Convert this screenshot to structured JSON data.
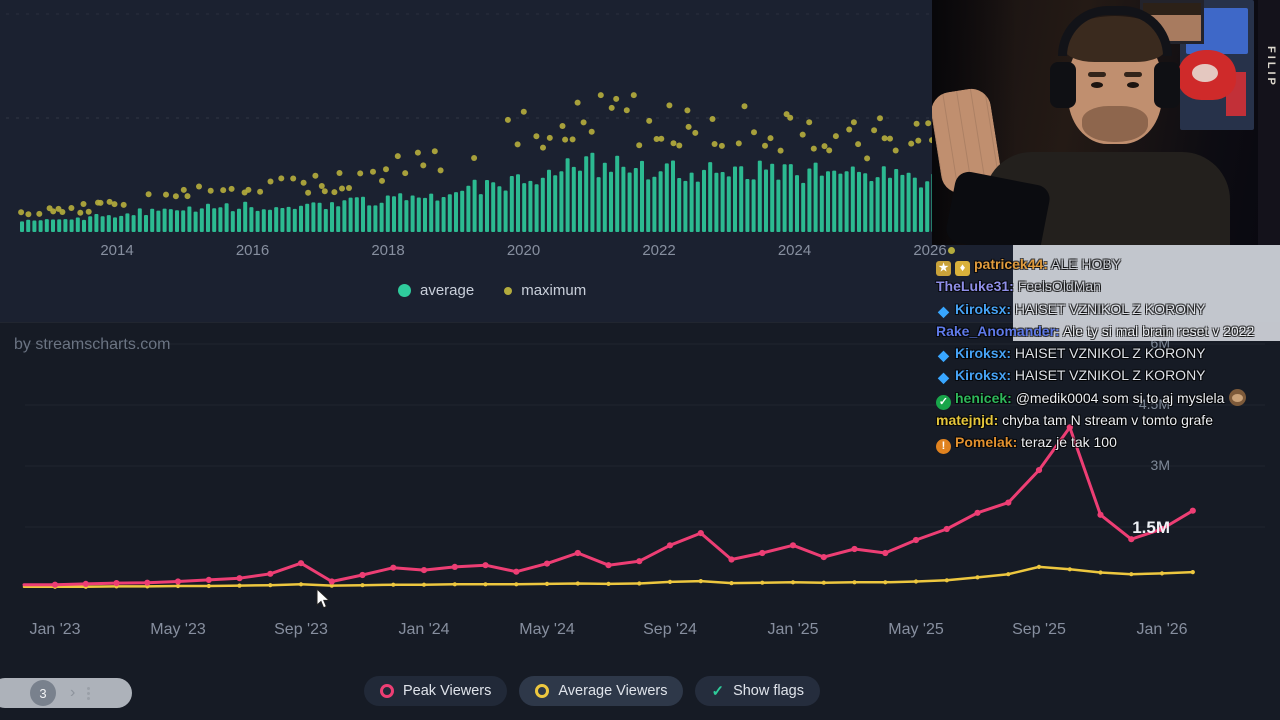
{
  "branding": {
    "label": "by streamscharts.com"
  },
  "chart_data": [
    {
      "type": "bar",
      "x_ticks": [
        "2014",
        "2016",
        "2018",
        "2020",
        "2022",
        "2024",
        "2026"
      ],
      "x_year_range": [
        2012.6,
        2026.1
      ],
      "y_axis_visible": false,
      "legend": [
        {
          "label": "average",
          "color": "#2fcb9c"
        },
        {
          "label": "maximum",
          "color": "#b3ab3d"
        }
      ],
      "anchor_years": [
        2013,
        2014,
        2015,
        2016,
        2017,
        2018,
        2019,
        2020,
        2021,
        2022,
        2023,
        2024,
        2025,
        2026
      ],
      "series": [
        {
          "name": "average",
          "render": "bars",
          "color": "#2fcb9c",
          "values_rel": [
            8,
            12,
            16,
            17,
            18,
            21,
            27,
            37,
            45,
            42,
            40,
            40,
            37,
            37
          ]
        },
        {
          "name": "maximum",
          "render": "points",
          "color": "#b3ab3d",
          "values_rel": [
            13,
            20,
            27,
            28,
            32,
            41,
            50,
            70,
            77,
            73,
            70,
            67,
            63,
            60
          ]
        }
      ]
    },
    {
      "type": "line",
      "x_ticks": [
        "Jan '23",
        "May '23",
        "Sep '23",
        "Jan '24",
        "May '24",
        "Sep '24",
        "Jan '25",
        "May '25",
        "Sep '25",
        "Jan '26"
      ],
      "y_ticks": [
        {
          "label": "6M",
          "value_m": 6
        },
        {
          "label": "4.5M",
          "value_m": 4.5
        },
        {
          "label": "3M",
          "value_m": 3
        },
        {
          "label": "1.5M",
          "value_m": 1.5
        }
      ],
      "months": [
        "Jan '23",
        "Feb '23",
        "Mar '23",
        "Apr '23",
        "May '23",
        "Jun '23",
        "Jul '23",
        "Aug '23",
        "Sep '23",
        "Oct '23",
        "Nov '23",
        "Dec '23",
        "Jan '24",
        "Feb '24",
        "Mar '24",
        "Apr '24",
        "May '24",
        "Jun '24",
        "Jul '24",
        "Aug '24",
        "Sep '24",
        "Oct '24",
        "Nov '24",
        "Dec '24",
        "Jan '25",
        "Feb '25",
        "Mar '25",
        "Apr '25",
        "May '25",
        "Jun '25",
        "Jul '25",
        "Aug '25",
        "Sep '25",
        "Oct '25",
        "Nov '25",
        "Dec '25",
        "Jan '26",
        "Feb '26"
      ],
      "series": [
        {
          "name": "Peak Viewers",
          "color": "#ed3e74",
          "values_m": [
            0.08,
            0.1,
            0.12,
            0.13,
            0.16,
            0.2,
            0.24,
            0.35,
            0.61,
            0.16,
            0.32,
            0.5,
            0.44,
            0.52,
            0.56,
            0.4,
            0.6,
            0.86,
            0.56,
            0.66,
            1.05,
            1.35,
            0.7,
            0.86,
            1.05,
            0.76,
            0.96,
            0.86,
            1.18,
            1.45,
            1.85,
            2.1,
            2.9,
            3.95,
            1.8,
            1.2,
            1.45,
            1.9
          ]
        },
        {
          "name": "Average Viewers",
          "color": "#edc73f",
          "values_m": [
            0.03,
            0.03,
            0.04,
            0.04,
            0.05,
            0.05,
            0.06,
            0.07,
            0.09,
            0.06,
            0.07,
            0.08,
            0.08,
            0.09,
            0.09,
            0.09,
            0.1,
            0.11,
            0.1,
            0.11,
            0.15,
            0.17,
            0.12,
            0.13,
            0.14,
            0.13,
            0.14,
            0.14,
            0.16,
            0.19,
            0.26,
            0.34,
            0.52,
            0.46,
            0.38,
            0.34,
            0.36,
            0.39
          ]
        }
      ]
    }
  ],
  "legend_buttons": [
    {
      "label": "Peak Viewers",
      "ring_color": "#ed3e74"
    },
    {
      "label": "Average Viewers",
      "ring_color": "#edc73f"
    },
    {
      "label": "Show flags",
      "check": "✓",
      "check_color": "#2ecc9a"
    }
  ],
  "pager": {
    "count": "3",
    "chevron": "›"
  },
  "webcam": {
    "name_tag": "FILIP"
  },
  "chat": {
    "messages": [
      {
        "badges": [
          {
            "name": "gift-badge",
            "glyph": "★",
            "bg": "#c9a23a",
            "fg": "#ffffff",
            "shape": "square"
          },
          {
            "name": "sub-badge",
            "glyph": "♦",
            "bg": "#d9b13b",
            "fg": "#ffffff",
            "shape": "square"
          }
        ],
        "user": "patricek44",
        "user_color": "#e09b3d",
        "text": "ALE HOBY",
        "text_color": "#c9ccd3"
      },
      {
        "badges": [],
        "user": "TheLuke31",
        "user_color": "#8f8fe8",
        "text": "FeelsOldMan",
        "text_color": "#c9ccd3"
      },
      {
        "badges": [
          {
            "name": "gem-badge",
            "glyph": "◆",
            "bg": "",
            "fg": "#38a6ff",
            "shape": "plain"
          }
        ],
        "user": "Kiroksx",
        "user_color": "#47a3f5",
        "text": "HAISET VZNIKOL Z KORONY",
        "text_color": "#dfe2e8"
      },
      {
        "badges": [],
        "user": "Rake_Anomander",
        "user_color": "#5f7ae8",
        "text": "Ale ty si mal brain reset v 2022",
        "text_color": "#eceef2"
      },
      {
        "badges": [
          {
            "name": "gem-badge",
            "glyph": "◆",
            "bg": "",
            "fg": "#38a6ff",
            "shape": "plain"
          }
        ],
        "user": "Kiroksx",
        "user_color": "#47a3f5",
        "text": "HAISET VZNIKOL Z KORONY",
        "text_color": "#dfe2e8"
      },
      {
        "badges": [
          {
            "name": "gem-badge",
            "glyph": "◆",
            "bg": "",
            "fg": "#38a6ff",
            "shape": "plain"
          }
        ],
        "user": "Kiroksx",
        "user_color": "#47a3f5",
        "text": "HAISET VZNIKOL Z KORONY",
        "text_color": "#dfe2e8"
      },
      {
        "badges": [
          {
            "name": "verified-badge",
            "glyph": "✓",
            "bg": "#18a54a",
            "fg": "#ffffff",
            "shape": "round"
          }
        ],
        "user": "henicek",
        "user_color": "#2fb85b",
        "text": "@medik0004 som si to aj myslela",
        "text_color": "#eceef2",
        "emote": "see-no-evil-monkey"
      },
      {
        "badges": [],
        "user": "matejnjd",
        "user_color": "#e5c63c",
        "text": "chyba tam N stream v tomto grafe",
        "text_color": "#eceef2"
      },
      {
        "badges": [
          {
            "name": "alert-badge",
            "glyph": "!",
            "bg": "#e0821f",
            "fg": "#ffffff",
            "shape": "round"
          }
        ],
        "user": "Pomelak",
        "user_color": "#e0902f",
        "text": "teraz je tak 100",
        "text_color": "#eceef2"
      }
    ]
  }
}
